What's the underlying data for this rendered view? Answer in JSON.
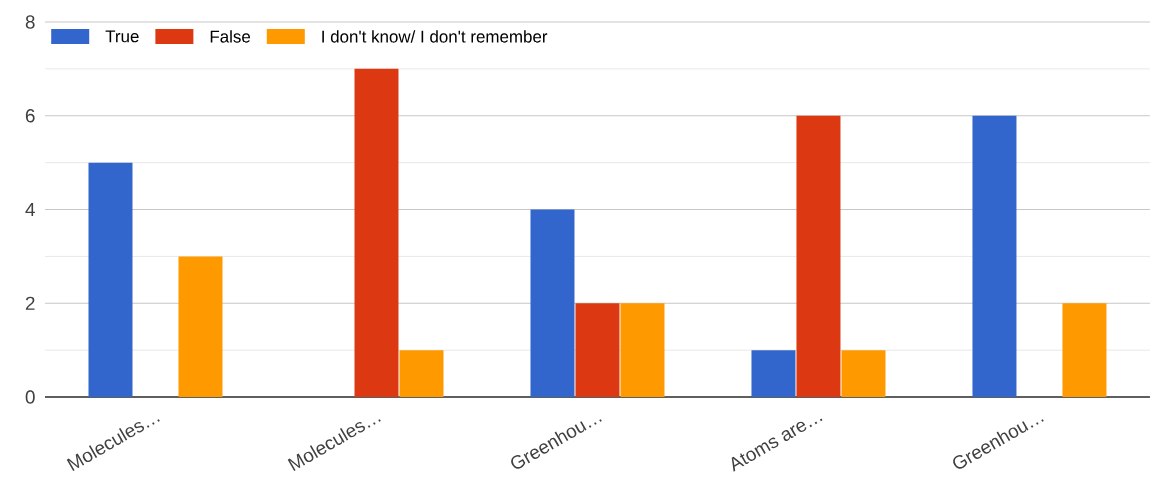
{
  "chart_data": {
    "type": "bar",
    "categories": [
      "Molecules…",
      "Molecules…",
      "Greenhou…",
      "Atoms are…",
      "Greenhou…"
    ],
    "series": [
      {
        "name": "True",
        "color": "#3366cc",
        "values": [
          5,
          0,
          4,
          1,
          6
        ]
      },
      {
        "name": "False",
        "color": "#dc3912",
        "values": [
          0,
          7,
          2,
          6,
          0
        ]
      },
      {
        "name": "I don't know/ I don't remember",
        "color": "#ff9900",
        "values": [
          3,
          1,
          2,
          1,
          2
        ]
      }
    ],
    "ylim": [
      0,
      8
    ],
    "yticks": [
      0,
      2,
      4,
      6,
      8
    ],
    "grid": "y",
    "legend": "top left"
  }
}
